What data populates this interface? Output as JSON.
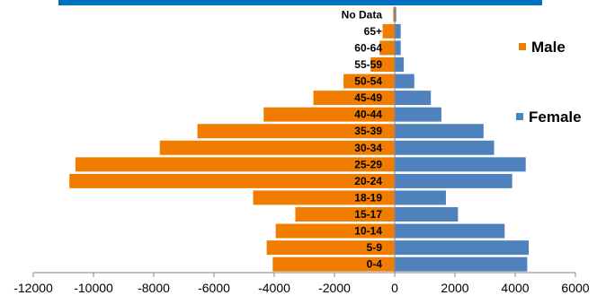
{
  "chart_data": {
    "type": "bar",
    "orientation": "horizontal",
    "layout": "population-pyramid",
    "categories": [
      "0-4",
      "5-9",
      "10-14",
      "15-17",
      "18-19",
      "20-24",
      "25-29",
      "30-34",
      "35-39",
      "40-44",
      "45-49",
      "50-54",
      "55-59",
      "60-64",
      "65+",
      "No Data"
    ],
    "series": [
      {
        "name": "Male",
        "color": "#F07D00",
        "values": [
          -4050,
          -4250,
          -3950,
          -3300,
          -4700,
          -10800,
          -10600,
          -7800,
          -6550,
          -4350,
          -2700,
          -1700,
          -800,
          -500,
          -400,
          -50
        ]
      },
      {
        "name": "Female",
        "color": "#4F81BD",
        "values": [
          4400,
          4450,
          3650,
          2100,
          1700,
          3900,
          4350,
          3300,
          2950,
          1550,
          1200,
          650,
          300,
          200,
          200,
          50
        ]
      }
    ],
    "xlim": [
      -12000,
      6000
    ],
    "xticks": [
      -12000,
      -10000,
      -8000,
      -6000,
      -4000,
      -2000,
      0,
      2000,
      4000,
      6000
    ],
    "xtick_labels": [
      "-12000",
      "-10000",
      "-8000",
      "-6000",
      "-4000",
      "-2000",
      "0",
      "2000",
      "4000",
      "6000"
    ],
    "title": "",
    "xlabel": "",
    "ylabel": "",
    "legend": {
      "position": "right",
      "entries": [
        "Male",
        "Female"
      ]
    },
    "header_strip_color": "#0070C0",
    "grid": false
  }
}
